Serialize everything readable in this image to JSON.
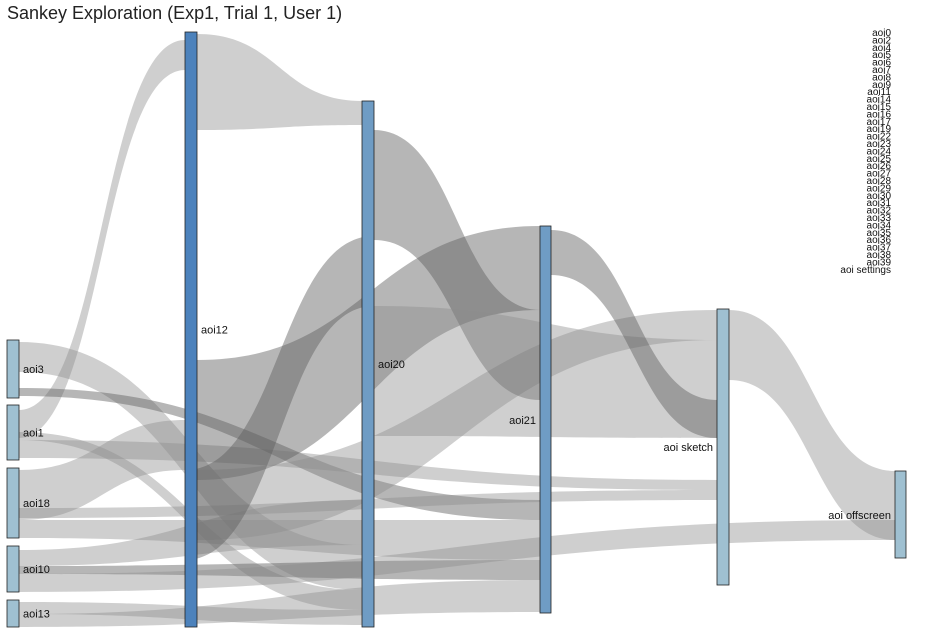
{
  "title": "Sankey Exploration (Exp1, Trial 1, User 1)",
  "colors": {
    "link": "#8c8c8c",
    "link_dark": "#5e5e5e",
    "node_light": "#9fc0d1",
    "node_mid": "#6f9cc4",
    "node_dark": "#4c82bc"
  },
  "nodes": [
    {
      "id": "aoi3",
      "label": "aoi3"
    },
    {
      "id": "aoi1",
      "label": "aoi1"
    },
    {
      "id": "aoi18",
      "label": "aoi18"
    },
    {
      "id": "aoi10",
      "label": "aoi10"
    },
    {
      "id": "aoi13",
      "label": "aoi13"
    },
    {
      "id": "aoi12",
      "label": "aoi12"
    },
    {
      "id": "aoi20",
      "label": "aoi20"
    },
    {
      "id": "aoi21",
      "label": "aoi21"
    },
    {
      "id": "aoi_sketch",
      "label": "aoi sketch"
    },
    {
      "id": "aoi_offscreen",
      "label": "aoi offscreen"
    }
  ],
  "links": [
    {
      "source": "aoi1",
      "target": "aoi12"
    },
    {
      "source": "aoi1",
      "target": "aoi20"
    },
    {
      "source": "aoi1",
      "target": "aoi_sketch"
    },
    {
      "source": "aoi3",
      "target": "aoi20"
    },
    {
      "source": "aoi3",
      "target": "aoi21"
    },
    {
      "source": "aoi18",
      "target": "aoi12"
    },
    {
      "source": "aoi18",
      "target": "aoi21"
    },
    {
      "source": "aoi18",
      "target": "aoi_sketch"
    },
    {
      "source": "aoi10",
      "target": "aoi20"
    },
    {
      "source": "aoi10",
      "target": "aoi21"
    },
    {
      "source": "aoi10",
      "target": "aoi_offscreen"
    },
    {
      "source": "aoi13",
      "target": "aoi20"
    },
    {
      "source": "aoi13",
      "target": "aoi21"
    },
    {
      "source": "aoi12",
      "target": "aoi20"
    },
    {
      "source": "aoi12",
      "target": "aoi21"
    },
    {
      "source": "aoi12",
      "target": "aoi_sketch"
    },
    {
      "source": "aoi20",
      "target": "aoi21"
    },
    {
      "source": "aoi20",
      "target": "aoi_sketch"
    },
    {
      "source": "aoi20",
      "target": "aoi12"
    },
    {
      "source": "aoi21",
      "target": "aoi_sketch"
    },
    {
      "source": "aoi_sketch",
      "target": "aoi_offscreen"
    }
  ],
  "empty_nodes": [
    "aoi0",
    "aoi2",
    "aoi4",
    "aoi5",
    "aoi6",
    "aoi7",
    "aoi8",
    "aoi9",
    "aoi11",
    "aoi14",
    "aoi15",
    "aoi16",
    "aoi17",
    "aoi19",
    "aoi22",
    "aoi23",
    "aoi24",
    "aoi25",
    "aoi26",
    "aoi27",
    "aoi28",
    "aoi29",
    "aoi30",
    "aoi31",
    "aoi32",
    "aoi33",
    "aoi34",
    "aoi35",
    "aoi36",
    "aoi37",
    "aoi38",
    "aoi39",
    "aoi settings"
  ]
}
